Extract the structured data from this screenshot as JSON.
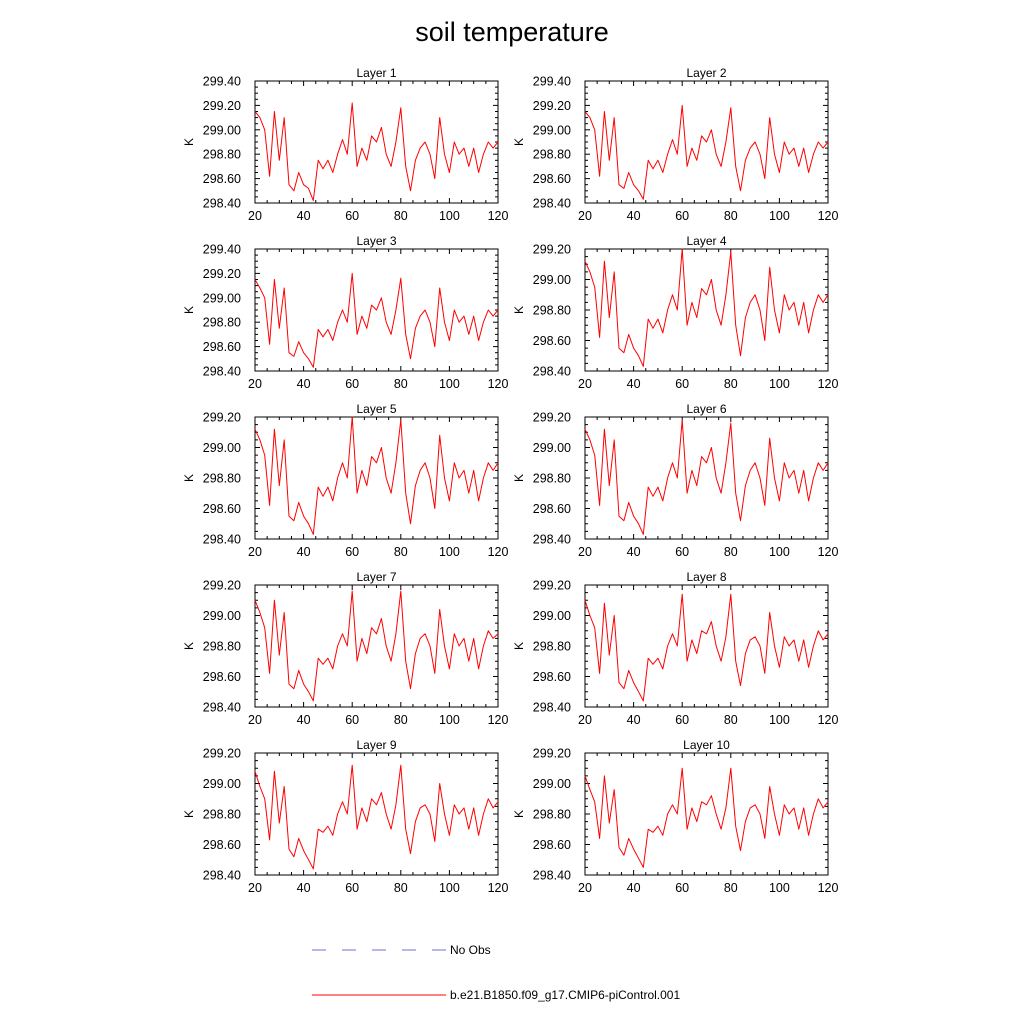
{
  "chart_data": {
    "type": "line",
    "title": "soil temperature",
    "ylabel": "K",
    "x_ticks": [
      20,
      40,
      60,
      80,
      100,
      120
    ],
    "xlim": [
      20,
      120
    ],
    "line_color": "#ff0000",
    "legend": [
      {
        "name": "No Obs",
        "color": "#6f6fd8",
        "style": "dashed"
      },
      {
        "name": "b.e21.B1850.f09_g17.CMIP6-piControl.001",
        "color": "#ff0000",
        "style": "solid"
      }
    ],
    "panels": [
      {
        "title": "Layer 1",
        "ylim": [
          298.4,
          299.4
        ],
        "yticks": [
          "298.40",
          "298.60",
          "298.80",
          "299.00",
          "299.20",
          "299.40"
        ],
        "x": [
          20,
          22,
          24,
          26,
          28,
          30,
          32,
          34,
          36,
          38,
          40,
          42,
          44,
          46,
          48,
          50,
          52,
          54,
          56,
          58,
          60,
          62,
          64,
          66,
          68,
          70,
          72,
          74,
          76,
          78,
          80,
          82,
          84,
          86,
          88,
          90,
          92,
          94,
          96,
          98,
          100,
          102,
          104,
          106,
          108,
          110,
          112,
          114,
          116,
          118,
          120
        ],
        "values": [
          299.15,
          299.1,
          299.0,
          298.62,
          299.15,
          298.75,
          299.1,
          298.55,
          298.5,
          298.65,
          298.55,
          298.52,
          298.42,
          298.75,
          298.68,
          298.75,
          298.65,
          298.8,
          298.92,
          298.8,
          299.22,
          298.7,
          298.85,
          298.75,
          298.95,
          298.9,
          299.02,
          298.8,
          298.7,
          298.9,
          299.18,
          298.7,
          298.5,
          298.75,
          298.85,
          298.9,
          298.8,
          298.6,
          299.1,
          298.8,
          298.65,
          298.9,
          298.8,
          298.85,
          298.7,
          298.85,
          298.65,
          298.8,
          298.9,
          298.85,
          298.9
        ]
      },
      {
        "title": "Layer 2",
        "ylim": [
          298.4,
          299.4
        ],
        "yticks": [
          "298.40",
          "298.60",
          "298.80",
          "299.00",
          "299.20",
          "299.40"
        ],
        "x": [
          20,
          22,
          24,
          26,
          28,
          30,
          32,
          34,
          36,
          38,
          40,
          42,
          44,
          46,
          48,
          50,
          52,
          54,
          56,
          58,
          60,
          62,
          64,
          66,
          68,
          70,
          72,
          74,
          76,
          78,
          80,
          82,
          84,
          86,
          88,
          90,
          92,
          94,
          96,
          98,
          100,
          102,
          104,
          106,
          108,
          110,
          112,
          114,
          116,
          118,
          120
        ],
        "values": [
          299.15,
          299.1,
          299.0,
          298.62,
          299.15,
          298.75,
          299.1,
          298.55,
          298.52,
          298.65,
          298.55,
          298.5,
          298.43,
          298.75,
          298.68,
          298.75,
          298.65,
          298.8,
          298.92,
          298.8,
          299.2,
          298.7,
          298.85,
          298.75,
          298.95,
          298.9,
          299.0,
          298.8,
          298.7,
          298.9,
          299.18,
          298.7,
          298.5,
          298.75,
          298.85,
          298.9,
          298.8,
          298.6,
          299.1,
          298.8,
          298.65,
          298.9,
          298.8,
          298.85,
          298.7,
          298.85,
          298.65,
          298.8,
          298.9,
          298.85,
          298.9
        ]
      },
      {
        "title": "Layer 3",
        "ylim": [
          298.4,
          299.4
        ],
        "yticks": [
          "298.40",
          "298.60",
          "298.80",
          "299.00",
          "299.20",
          "299.40"
        ],
        "x": [
          20,
          22,
          24,
          26,
          28,
          30,
          32,
          34,
          36,
          38,
          40,
          42,
          44,
          46,
          48,
          50,
          52,
          54,
          56,
          58,
          60,
          62,
          64,
          66,
          68,
          70,
          72,
          74,
          76,
          78,
          80,
          82,
          84,
          86,
          88,
          90,
          92,
          94,
          96,
          98,
          100,
          102,
          104,
          106,
          108,
          110,
          112,
          114,
          116,
          118,
          120
        ],
        "values": [
          299.15,
          299.08,
          299.0,
          298.62,
          299.15,
          298.75,
          299.08,
          298.55,
          298.52,
          298.64,
          298.55,
          298.5,
          298.43,
          298.74,
          298.68,
          298.74,
          298.65,
          298.8,
          298.9,
          298.8,
          299.2,
          298.7,
          298.85,
          298.75,
          298.94,
          298.9,
          299.0,
          298.8,
          298.7,
          298.9,
          299.16,
          298.7,
          298.5,
          298.75,
          298.85,
          298.9,
          298.8,
          298.6,
          299.08,
          298.8,
          298.65,
          298.9,
          298.8,
          298.85,
          298.7,
          298.85,
          298.65,
          298.8,
          298.9,
          298.85,
          298.9
        ]
      },
      {
        "title": "Layer 4",
        "ylim": [
          298.4,
          299.2
        ],
        "yticks": [
          "298.40",
          "298.60",
          "298.80",
          "299.00",
          "299.20"
        ],
        "x": [
          20,
          22,
          24,
          26,
          28,
          30,
          32,
          34,
          36,
          38,
          40,
          42,
          44,
          46,
          48,
          50,
          52,
          54,
          56,
          58,
          60,
          62,
          64,
          66,
          68,
          70,
          72,
          74,
          76,
          78,
          80,
          82,
          84,
          86,
          88,
          90,
          92,
          94,
          96,
          98,
          100,
          102,
          104,
          106,
          108,
          110,
          112,
          114,
          116,
          118,
          120
        ],
        "values": [
          299.12,
          299.05,
          298.95,
          298.62,
          299.12,
          298.75,
          299.05,
          298.55,
          298.52,
          298.64,
          298.55,
          298.5,
          298.43,
          298.74,
          298.68,
          298.74,
          298.65,
          298.8,
          298.9,
          298.8,
          299.2,
          298.7,
          298.85,
          298.75,
          298.94,
          298.9,
          299.0,
          298.8,
          298.7,
          298.9,
          299.18,
          298.7,
          298.5,
          298.75,
          298.85,
          298.9,
          298.8,
          298.6,
          299.08,
          298.8,
          298.65,
          298.9,
          298.8,
          298.85,
          298.7,
          298.85,
          298.65,
          298.8,
          298.9,
          298.85,
          298.9
        ]
      },
      {
        "title": "Layer 5",
        "ylim": [
          298.4,
          299.2
        ],
        "yticks": [
          "298.40",
          "298.60",
          "298.80",
          "299.00",
          "299.20"
        ],
        "x": [
          20,
          22,
          24,
          26,
          28,
          30,
          32,
          34,
          36,
          38,
          40,
          42,
          44,
          46,
          48,
          50,
          52,
          54,
          56,
          58,
          60,
          62,
          64,
          66,
          68,
          70,
          72,
          74,
          76,
          78,
          80,
          82,
          84,
          86,
          88,
          90,
          92,
          94,
          96,
          98,
          100,
          102,
          104,
          106,
          108,
          110,
          112,
          114,
          116,
          118,
          120
        ],
        "values": [
          299.12,
          299.05,
          298.95,
          298.62,
          299.12,
          298.75,
          299.05,
          298.55,
          298.52,
          298.64,
          298.55,
          298.5,
          298.43,
          298.74,
          298.68,
          298.74,
          298.65,
          298.8,
          298.9,
          298.8,
          299.2,
          298.7,
          298.85,
          298.75,
          298.94,
          298.9,
          299.0,
          298.8,
          298.7,
          298.9,
          299.18,
          298.7,
          298.5,
          298.75,
          298.85,
          298.9,
          298.8,
          298.6,
          299.08,
          298.8,
          298.65,
          298.9,
          298.8,
          298.85,
          298.7,
          298.85,
          298.65,
          298.8,
          298.9,
          298.85,
          298.9
        ]
      },
      {
        "title": "Layer 6",
        "ylim": [
          298.4,
          299.2
        ],
        "yticks": [
          "298.40",
          "298.60",
          "298.80",
          "299.00",
          "299.20"
        ],
        "x": [
          20,
          22,
          24,
          26,
          28,
          30,
          32,
          34,
          36,
          38,
          40,
          42,
          44,
          46,
          48,
          50,
          52,
          54,
          56,
          58,
          60,
          62,
          64,
          66,
          68,
          70,
          72,
          74,
          76,
          78,
          80,
          82,
          84,
          86,
          88,
          90,
          92,
          94,
          96,
          98,
          100,
          102,
          104,
          106,
          108,
          110,
          112,
          114,
          116,
          118,
          120
        ],
        "values": [
          299.12,
          299.05,
          298.95,
          298.62,
          299.12,
          298.75,
          299.05,
          298.55,
          298.52,
          298.64,
          298.55,
          298.5,
          298.43,
          298.74,
          298.68,
          298.74,
          298.65,
          298.8,
          298.9,
          298.8,
          299.18,
          298.7,
          298.85,
          298.75,
          298.94,
          298.9,
          299.0,
          298.8,
          298.7,
          298.9,
          299.16,
          298.7,
          298.52,
          298.75,
          298.85,
          298.9,
          298.8,
          298.62,
          299.06,
          298.8,
          298.65,
          298.9,
          298.8,
          298.85,
          298.7,
          298.85,
          298.65,
          298.8,
          298.9,
          298.85,
          298.9
        ]
      },
      {
        "title": "Layer 7",
        "ylim": [
          298.4,
          299.2
        ],
        "yticks": [
          "298.40",
          "298.60",
          "298.80",
          "299.00",
          "299.20"
        ],
        "x": [
          20,
          22,
          24,
          26,
          28,
          30,
          32,
          34,
          36,
          38,
          40,
          42,
          44,
          46,
          48,
          50,
          52,
          54,
          56,
          58,
          60,
          62,
          64,
          66,
          68,
          70,
          72,
          74,
          76,
          78,
          80,
          82,
          84,
          86,
          88,
          90,
          92,
          94,
          96,
          98,
          100,
          102,
          104,
          106,
          108,
          110,
          112,
          114,
          116,
          118,
          120
        ],
        "values": [
          299.1,
          299.02,
          298.92,
          298.62,
          299.1,
          298.74,
          299.02,
          298.55,
          298.52,
          298.64,
          298.55,
          298.5,
          298.44,
          298.72,
          298.68,
          298.72,
          298.65,
          298.8,
          298.88,
          298.8,
          299.16,
          298.7,
          298.85,
          298.75,
          298.92,
          298.88,
          298.98,
          298.8,
          298.7,
          298.88,
          299.16,
          298.7,
          298.52,
          298.75,
          298.85,
          298.88,
          298.8,
          298.62,
          299.04,
          298.8,
          298.65,
          298.88,
          298.8,
          298.85,
          298.7,
          298.85,
          298.65,
          298.8,
          298.9,
          298.85,
          298.88
        ]
      },
      {
        "title": "Layer 8",
        "ylim": [
          298.4,
          299.2
        ],
        "yticks": [
          "298.40",
          "298.60",
          "298.80",
          "299.00",
          "299.20"
        ],
        "x": [
          20,
          22,
          24,
          26,
          28,
          30,
          32,
          34,
          36,
          38,
          40,
          42,
          44,
          46,
          48,
          50,
          52,
          54,
          56,
          58,
          60,
          62,
          64,
          66,
          68,
          70,
          72,
          74,
          76,
          78,
          80,
          82,
          84,
          86,
          88,
          90,
          92,
          94,
          96,
          98,
          100,
          102,
          104,
          106,
          108,
          110,
          112,
          114,
          116,
          118,
          120
        ],
        "values": [
          299.1,
          299.0,
          298.92,
          298.62,
          299.08,
          298.74,
          299.0,
          298.56,
          298.52,
          298.64,
          298.56,
          298.5,
          298.44,
          298.72,
          298.68,
          298.72,
          298.65,
          298.8,
          298.88,
          298.8,
          299.14,
          298.7,
          298.84,
          298.75,
          298.9,
          298.88,
          298.96,
          298.8,
          298.7,
          298.86,
          299.14,
          298.7,
          298.54,
          298.75,
          298.84,
          298.86,
          298.8,
          298.62,
          299.02,
          298.8,
          298.66,
          298.86,
          298.8,
          298.84,
          298.7,
          298.84,
          298.66,
          298.8,
          298.9,
          298.84,
          298.88
        ]
      },
      {
        "title": "Layer 9",
        "ylim": [
          298.4,
          299.2
        ],
        "yticks": [
          "298.40",
          "298.60",
          "298.80",
          "299.00",
          "299.20"
        ],
        "x": [
          20,
          22,
          24,
          26,
          28,
          30,
          32,
          34,
          36,
          38,
          40,
          42,
          44,
          46,
          48,
          50,
          52,
          54,
          56,
          58,
          60,
          62,
          64,
          66,
          68,
          70,
          72,
          74,
          76,
          78,
          80,
          82,
          84,
          86,
          88,
          90,
          92,
          94,
          96,
          98,
          100,
          102,
          104,
          106,
          108,
          110,
          112,
          114,
          116,
          118,
          120
        ],
        "values": [
          299.08,
          298.98,
          298.9,
          298.63,
          299.08,
          298.74,
          298.98,
          298.57,
          298.52,
          298.64,
          298.56,
          298.5,
          298.44,
          298.7,
          298.68,
          298.72,
          298.66,
          298.8,
          298.88,
          298.8,
          299.12,
          298.7,
          298.84,
          298.75,
          298.9,
          298.86,
          298.94,
          298.8,
          298.7,
          298.86,
          299.12,
          298.7,
          298.54,
          298.75,
          298.84,
          298.86,
          298.8,
          298.62,
          299.0,
          298.8,
          298.66,
          298.86,
          298.8,
          298.84,
          298.7,
          298.84,
          298.66,
          298.8,
          298.9,
          298.84,
          298.88
        ]
      },
      {
        "title": "Layer 10",
        "ylim": [
          298.4,
          299.2
        ],
        "yticks": [
          "298.40",
          "298.60",
          "298.80",
          "299.00",
          "299.20"
        ],
        "x": [
          20,
          22,
          24,
          26,
          28,
          30,
          32,
          34,
          36,
          38,
          40,
          42,
          44,
          46,
          48,
          50,
          52,
          54,
          56,
          58,
          60,
          62,
          64,
          66,
          68,
          70,
          72,
          74,
          76,
          78,
          80,
          82,
          84,
          86,
          88,
          90,
          92,
          94,
          96,
          98,
          100,
          102,
          104,
          106,
          108,
          110,
          112,
          114,
          116,
          118,
          120
        ],
        "values": [
          299.05,
          298.96,
          298.88,
          298.64,
          299.05,
          298.74,
          298.96,
          298.58,
          298.53,
          298.64,
          298.57,
          298.51,
          298.45,
          298.7,
          298.68,
          298.72,
          298.66,
          298.8,
          298.86,
          298.8,
          299.1,
          298.7,
          298.84,
          298.75,
          298.88,
          298.86,
          298.92,
          298.8,
          298.7,
          298.84,
          299.1,
          298.72,
          298.56,
          298.75,
          298.84,
          298.86,
          298.8,
          298.64,
          298.98,
          298.8,
          298.66,
          298.86,
          298.8,
          298.84,
          298.7,
          298.84,
          298.66,
          298.8,
          298.9,
          298.84,
          298.88
        ]
      }
    ]
  }
}
